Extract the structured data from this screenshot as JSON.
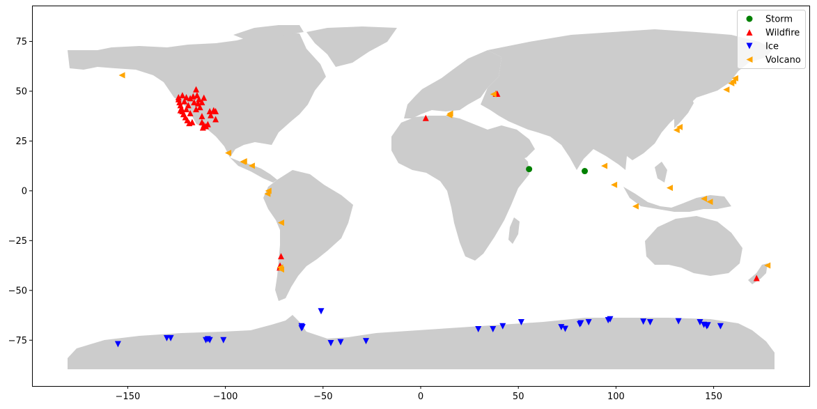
{
  "chart_data": {
    "type": "scatter",
    "title": "",
    "xlabel": "",
    "ylabel": "",
    "xlim": [
      -199,
      199
    ],
    "ylim": [
      -98,
      93
    ],
    "xticks": [
      -150,
      -100,
      -50,
      0,
      50,
      100,
      150
    ],
    "yticks": [
      -75,
      -50,
      -25,
      0,
      25,
      50,
      75
    ],
    "grid": false,
    "legend_position": "top-right",
    "background_map": "world land masses (gray)",
    "land_color": "#cccccc",
    "series": [
      {
        "name": "Storm",
        "marker": "circle",
        "color": "#008000",
        "points": [
          [
            55.5,
            10.9
          ],
          [
            84,
            9.9
          ]
        ]
      },
      {
        "name": "Wildfire",
        "marker": "triangle-up",
        "color": "#ff0000",
        "points": [
          [
            -124,
            46
          ],
          [
            -123.5,
            44.5
          ],
          [
            -123,
            43
          ],
          [
            -122.5,
            41.5
          ],
          [
            -122,
            40
          ],
          [
            -121.5,
            38.5
          ],
          [
            -120.5,
            37
          ],
          [
            -119.5,
            35.5
          ],
          [
            -118.5,
            34
          ],
          [
            -117,
            34.5
          ],
          [
            -124,
            47
          ],
          [
            -122,
            48
          ],
          [
            -120,
            47
          ],
          [
            -118,
            46.5
          ],
          [
            -116.5,
            47.5
          ],
          [
            -115,
            51
          ],
          [
            -114.5,
            48
          ],
          [
            -113.5,
            46
          ],
          [
            -116,
            44.5
          ],
          [
            -114,
            44
          ],
          [
            -112,
            44.5
          ],
          [
            -111,
            46.8
          ],
          [
            -113,
            42
          ],
          [
            -115,
            41
          ],
          [
            -112,
            37.5
          ],
          [
            -112,
            34.5
          ],
          [
            -111,
            33
          ],
          [
            -110,
            32.5
          ],
          [
            -111.5,
            31.8
          ],
          [
            -109,
            33.5
          ],
          [
            -107.5,
            38
          ],
          [
            -106,
            40.5
          ],
          [
            -105,
            40
          ],
          [
            -105,
            36
          ],
          [
            -108,
            40
          ],
          [
            -121,
            45
          ],
          [
            -119,
            43
          ],
          [
            -120,
            41
          ],
          [
            -118,
            39
          ],
          [
            -123,
            40.5
          ],
          [
            2.6,
            36.6
          ],
          [
            38.5,
            48.8
          ],
          [
            39.2,
            48.8
          ],
          [
            -71.5,
            -32.8
          ],
          [
            -72,
            -37.5
          ],
          [
            -72.2,
            -38.5
          ],
          [
            172,
            -43.8
          ]
        ]
      },
      {
        "name": "Ice",
        "marker": "triangle-down",
        "color": "#0000ff",
        "points": [
          [
            -155,
            -77
          ],
          [
            -130,
            -74
          ],
          [
            -128,
            -74
          ],
          [
            -110,
            -75
          ],
          [
            -109,
            -74.5
          ],
          [
            -108,
            -75
          ],
          [
            -101,
            -75
          ],
          [
            -61,
            -68
          ],
          [
            -61,
            -69
          ],
          [
            -60.5,
            -68.5
          ],
          [
            -51,
            -60.5
          ],
          [
            -46,
            -76.5
          ],
          [
            -41,
            -76
          ],
          [
            -28,
            -75.5
          ],
          [
            29.5,
            -69.5
          ],
          [
            37,
            -69.5
          ],
          [
            42,
            -68
          ],
          [
            51.5,
            -66
          ],
          [
            72,
            -68.5
          ],
          [
            74,
            -69.3
          ],
          [
            81.5,
            -67
          ],
          [
            82,
            -66.5
          ],
          [
            86,
            -66
          ],
          [
            96,
            -65
          ],
          [
            97,
            -64.5
          ],
          [
            114,
            -65.7
          ],
          [
            117.5,
            -66
          ],
          [
            132,
            -65.5
          ],
          [
            143,
            -66
          ],
          [
            145,
            -67.3
          ],
          [
            146.5,
            -68
          ],
          [
            147,
            -67.5
          ],
          [
            153.5,
            -68
          ]
        ]
      },
      {
        "name": "Volcano",
        "marker": "triangle-left",
        "color": "#ffa500",
        "points": [
          [
            -153,
            58
          ],
          [
            -98.6,
            19
          ],
          [
            -91,
            14.6
          ],
          [
            -90.5,
            14.8
          ],
          [
            -86.5,
            12.6
          ],
          [
            -78,
            0
          ],
          [
            -78.5,
            -1.5
          ],
          [
            -71.5,
            -16
          ],
          [
            -72,
            -38.5
          ],
          [
            -71.5,
            -39.5
          ],
          [
            14.6,
            38
          ],
          [
            15,
            38.8
          ],
          [
            37.2,
            48.5
          ],
          [
            94,
            12.5
          ],
          [
            99,
            3
          ],
          [
            110,
            -7.8
          ],
          [
            127.5,
            1.5
          ],
          [
            145,
            -4
          ],
          [
            148,
            -5.5
          ],
          [
            131,
            30.5
          ],
          [
            132.5,
            32
          ],
          [
            156.5,
            50.8
          ],
          [
            159,
            54
          ],
          [
            160,
            55
          ],
          [
            161,
            56.5
          ],
          [
            177.5,
            -37.5
          ]
        ]
      }
    ]
  }
}
